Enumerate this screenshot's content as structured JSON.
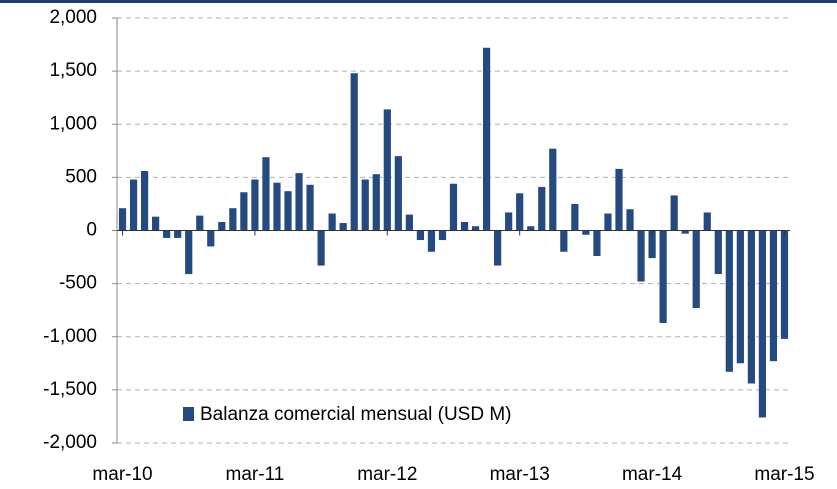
{
  "chart_data": {
    "type": "bar",
    "categories": [
      "mar-10",
      null,
      null,
      null,
      null,
      null,
      null,
      null,
      null,
      null,
      null,
      null,
      "mar-11",
      null,
      null,
      null,
      null,
      null,
      null,
      null,
      null,
      null,
      null,
      null,
      "mar-12",
      null,
      null,
      null,
      null,
      null,
      null,
      null,
      null,
      null,
      null,
      null,
      "mar-13",
      null,
      null,
      null,
      null,
      null,
      null,
      null,
      null,
      null,
      null,
      null,
      "mar-14",
      null,
      null,
      null,
      null,
      null,
      null,
      null,
      null,
      null,
      null,
      null,
      "mar-15"
    ],
    "series": [
      {
        "name": "Balanza comercial mensual (USD M)",
        "color": "#254a80",
        "values": [
          210,
          480,
          560,
          130,
          -70,
          -70,
          -410,
          140,
          -150,
          80,
          210,
          360,
          480,
          690,
          450,
          370,
          540,
          430,
          -330,
          160,
          70,
          1480,
          480,
          530,
          1140,
          700,
          150,
          -90,
          -200,
          -90,
          440,
          80,
          40,
          1720,
          -330,
          170,
          350,
          40,
          410,
          770,
          -200,
          250,
          -40,
          -240,
          160,
          580,
          200,
          -480,
          -260,
          -870,
          330,
          -30,
          -730,
          170,
          -410,
          -1330,
          -1250,
          -1440,
          -1760,
          -1230,
          -1020
        ]
      }
    ],
    "ylim": [
      -2000,
      2000
    ],
    "yticks": [
      {
        "value": -2000,
        "label": "-2,000"
      },
      {
        "value": -1500,
        "label": "-1,500"
      },
      {
        "value": -1000,
        "label": "-1,000"
      },
      -500,
      0,
      500,
      {
        "value": 1000,
        "label": "1,000"
      },
      {
        "value": 1500,
        "label": "1,500"
      },
      {
        "value": 2000,
        "label": "2,000"
      }
    ],
    "grid": true
  }
}
